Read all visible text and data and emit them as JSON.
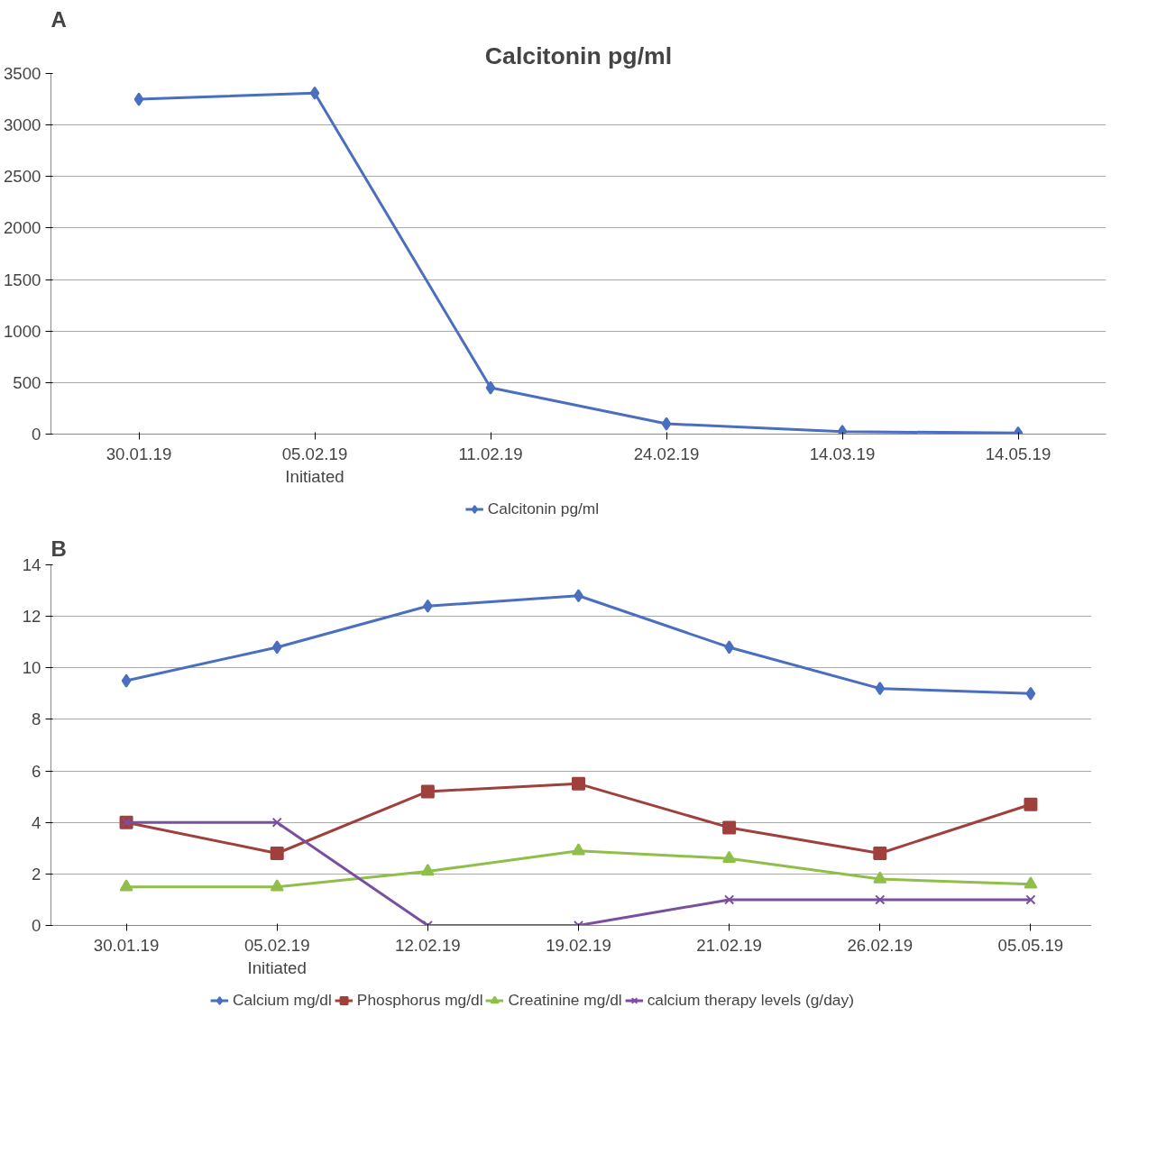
{
  "chart_data": [
    {
      "type": "line",
      "title": "Calcitonin pg/ml",
      "annotations": [
        "A"
      ],
      "categories": [
        "30.01.19",
        "05.02.19\nInitiated",
        "11.02.19",
        "24.02.19",
        "14.03.19",
        "14.05.19"
      ],
      "series": [
        {
          "name": "Calcitonin pg/ml",
          "color": "#4a6fbf",
          "marker": "diamond",
          "values": [
            3250,
            3310,
            450,
            100,
            25,
            10
          ]
        }
      ],
      "ylim": [
        0,
        3500
      ],
      "yticks": [
        0,
        500,
        1000,
        1500,
        2000,
        2500,
        3000,
        3500
      ],
      "grid": "y",
      "legend": "bottom"
    },
    {
      "type": "line",
      "annotations": [
        "B"
      ],
      "categories": [
        "30.01.19",
        "05.02.19\nInitiated",
        "12.02.19",
        "19.02.19",
        "21.02.19",
        "26.02.19",
        "05.05.19"
      ],
      "series": [
        {
          "name": "Calcium mg/dl",
          "color": "#4a6fbf",
          "marker": "diamond",
          "values": [
            9.5,
            10.8,
            12.4,
            12.8,
            10.8,
            9.2,
            9.0
          ]
        },
        {
          "name": "Phosphorus mg/dl",
          "color": "#a0403c",
          "marker": "square",
          "values": [
            4.0,
            2.8,
            5.2,
            5.5,
            3.8,
            2.8,
            4.7
          ]
        },
        {
          "name": "Creatinine mg/dl",
          "color": "#8fbf4a",
          "marker": "triangle",
          "values": [
            1.5,
            1.5,
            2.1,
            2.9,
            2.6,
            1.8,
            1.6
          ]
        },
        {
          "name": "calcium therapy levels (g/day)",
          "color": "#7a4fa0",
          "marker": "cross",
          "values": [
            4,
            4,
            0,
            0,
            1,
            1,
            1
          ]
        }
      ],
      "ylim": [
        0,
        14
      ],
      "yticks": [
        0,
        2,
        4,
        6,
        8,
        10,
        12,
        14
      ],
      "grid": "y",
      "legend": "bottom"
    }
  ]
}
